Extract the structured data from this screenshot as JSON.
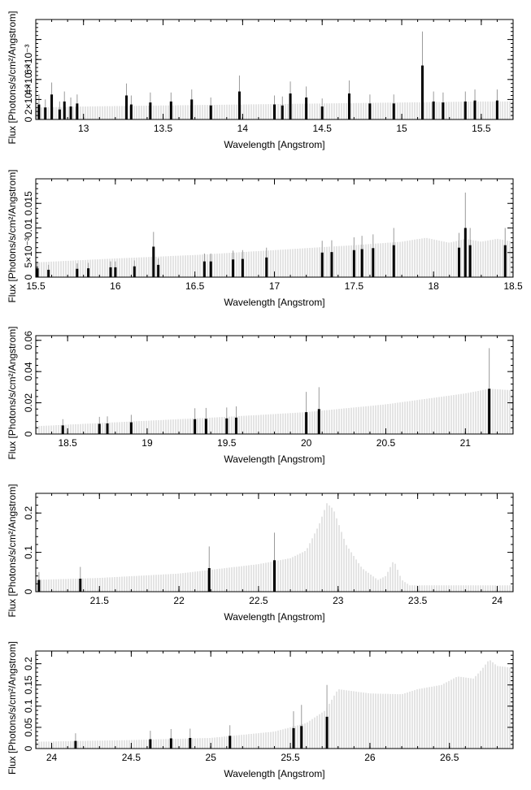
{
  "figure": {
    "xlabel": "Wavelength [Angstrom]",
    "ylabel": "Flux [Photons/s/cm²/Angstrom]"
  },
  "colors": {
    "model": "#c8c8c8",
    "data": "#000000",
    "errorbar": "#9a9a9a",
    "axis": "#000000"
  },
  "chart_data": [
    {
      "type": "bar",
      "panel": 1,
      "xlim": [
        12.7,
        15.7
      ],
      "ylim": [
        0,
        0.01
      ],
      "xticks": [
        13,
        13.5,
        14,
        14.5,
        15,
        15.5
      ],
      "xtick_labels": [
        "13",
        "13.5",
        "14",
        "14.5",
        "15",
        "15.5"
      ],
      "yticks": [
        0,
        0.002,
        0.004,
        0.006,
        0.008
      ],
      "ytick_labels": [
        "0",
        "2×10⁻³",
        "4×10⁻³",
        "6×10⁻³",
        ""
      ],
      "model_x": [
        12.7,
        13.0,
        13.5,
        14.0,
        14.5,
        15.0,
        15.5,
        15.7
      ],
      "model_y": [
        0.0012,
        0.0013,
        0.0014,
        0.0015,
        0.0016,
        0.0017,
        0.0018,
        0.0018
      ],
      "points": [
        {
          "x": 12.72,
          "y": 0.0015,
          "err": 0.001
        },
        {
          "x": 12.76,
          "y": 0.0012,
          "err": 0.0008
        },
        {
          "x": 12.8,
          "y": 0.0025,
          "err": 0.0012
        },
        {
          "x": 12.85,
          "y": 0.001,
          "err": 0.0008
        },
        {
          "x": 12.88,
          "y": 0.0018,
          "err": 0.001
        },
        {
          "x": 12.92,
          "y": 0.0013,
          "err": 0.0009
        },
        {
          "x": 12.96,
          "y": 0.0016,
          "err": 0.0009
        },
        {
          "x": 13.27,
          "y": 0.0024,
          "err": 0.0012
        },
        {
          "x": 13.3,
          "y": 0.0015,
          "err": 0.0009
        },
        {
          "x": 13.42,
          "y": 0.0017,
          "err": 0.001
        },
        {
          "x": 13.55,
          "y": 0.0018,
          "err": 0.0009
        },
        {
          "x": 13.68,
          "y": 0.002,
          "err": 0.001
        },
        {
          "x": 13.8,
          "y": 0.0014,
          "err": 0.0008
        },
        {
          "x": 13.98,
          "y": 0.0028,
          "err": 0.0016
        },
        {
          "x": 14.2,
          "y": 0.0015,
          "err": 0.0009
        },
        {
          "x": 14.25,
          "y": 0.0014,
          "err": 0.0009
        },
        {
          "x": 14.3,
          "y": 0.0026,
          "err": 0.0012
        },
        {
          "x": 14.4,
          "y": 0.0022,
          "err": 0.0011
        },
        {
          "x": 14.5,
          "y": 0.0013,
          "err": 0.0008
        },
        {
          "x": 14.67,
          "y": 0.0026,
          "err": 0.0013
        },
        {
          "x": 14.8,
          "y": 0.0016,
          "err": 0.0009
        },
        {
          "x": 14.95,
          "y": 0.0016,
          "err": 0.0009
        },
        {
          "x": 15.13,
          "y": 0.0054,
          "err": 0.0034
        },
        {
          "x": 15.2,
          "y": 0.0018,
          "err": 0.001
        },
        {
          "x": 15.26,
          "y": 0.0017,
          "err": 0.001
        },
        {
          "x": 15.4,
          "y": 0.0018,
          "err": 0.001
        },
        {
          "x": 15.46,
          "y": 0.0019,
          "err": 0.0011
        },
        {
          "x": 15.6,
          "y": 0.0019,
          "err": 0.0011
        }
      ]
    },
    {
      "type": "bar",
      "panel": 2,
      "xlim": [
        15.5,
        18.5
      ],
      "ylim": [
        0,
        0.02
      ],
      "xticks": [
        15.5,
        16,
        16.5,
        17,
        17.5,
        18,
        18.5
      ],
      "xtick_labels": [
        "15.5",
        "16",
        "16.5",
        "17",
        "17.5",
        "18",
        "18.5"
      ],
      "yticks": [
        0,
        0.005,
        0.01,
        0.015
      ],
      "ytick_labels": [
        "0",
        "5×10⁻³",
        "0.01",
        "0.015"
      ],
      "model_x": [
        15.5,
        16.0,
        16.5,
        17.0,
        17.5,
        17.8,
        17.95,
        18.1,
        18.2,
        18.3,
        18.4,
        18.5
      ],
      "model_y": [
        0.003,
        0.0038,
        0.0045,
        0.0055,
        0.0065,
        0.0072,
        0.008,
        0.007,
        0.0078,
        0.0072,
        0.0078,
        0.0072
      ],
      "points": [
        {
          "x": 15.51,
          "y": 0.0018,
          "err": 0.0012
        },
        {
          "x": 15.58,
          "y": 0.0015,
          "err": 0.001
        },
        {
          "x": 15.76,
          "y": 0.0017,
          "err": 0.0011
        },
        {
          "x": 15.83,
          "y": 0.0018,
          "err": 0.0011
        },
        {
          "x": 15.97,
          "y": 0.002,
          "err": 0.0012
        },
        {
          "x": 16.0,
          "y": 0.002,
          "err": 0.0012
        },
        {
          "x": 16.12,
          "y": 0.0022,
          "err": 0.0012
        },
        {
          "x": 16.24,
          "y": 0.0062,
          "err": 0.003
        },
        {
          "x": 16.27,
          "y": 0.0025,
          "err": 0.0013
        },
        {
          "x": 16.56,
          "y": 0.0032,
          "err": 0.0016
        },
        {
          "x": 16.6,
          "y": 0.0032,
          "err": 0.0016
        },
        {
          "x": 16.74,
          "y": 0.0036,
          "err": 0.0018
        },
        {
          "x": 16.8,
          "y": 0.0037,
          "err": 0.0018
        },
        {
          "x": 16.95,
          "y": 0.004,
          "err": 0.002
        },
        {
          "x": 17.3,
          "y": 0.005,
          "err": 0.0024
        },
        {
          "x": 17.36,
          "y": 0.0051,
          "err": 0.0024
        },
        {
          "x": 17.5,
          "y": 0.0055,
          "err": 0.0026
        },
        {
          "x": 17.55,
          "y": 0.0057,
          "err": 0.0027
        },
        {
          "x": 17.62,
          "y": 0.0059,
          "err": 0.0028
        },
        {
          "x": 17.75,
          "y": 0.0065,
          "err": 0.0035
        },
        {
          "x": 18.16,
          "y": 0.006,
          "err": 0.003
        },
        {
          "x": 18.2,
          "y": 0.01,
          "err": 0.0072
        },
        {
          "x": 18.23,
          "y": 0.0065,
          "err": 0.0035
        },
        {
          "x": 18.45,
          "y": 0.0065,
          "err": 0.0035
        }
      ]
    },
    {
      "type": "bar",
      "panel": 3,
      "xlim": [
        18.3,
        21.3
      ],
      "ylim": [
        0,
        0.063
      ],
      "xticks": [
        18.5,
        19,
        19.5,
        20,
        20.5,
        21
      ],
      "xtick_labels": [
        "18.5",
        "19",
        "19.5",
        "20",
        "20.5",
        "21"
      ],
      "yticks": [
        0,
        0.02,
        0.04,
        0.06
      ],
      "ytick_labels": [
        "0",
        "0.02",
        "0.04",
        "0.06"
      ],
      "model_x": [
        18.3,
        19.0,
        19.5,
        20.0,
        20.5,
        21.0,
        21.15,
        21.3
      ],
      "model_y": [
        0.005,
        0.0085,
        0.011,
        0.014,
        0.019,
        0.026,
        0.029,
        0.028
      ],
      "points": [
        {
          "x": 18.47,
          "y": 0.0055,
          "err": 0.004
        },
        {
          "x": 18.7,
          "y": 0.0065,
          "err": 0.0045
        },
        {
          "x": 18.75,
          "y": 0.0068,
          "err": 0.0045
        },
        {
          "x": 18.9,
          "y": 0.0075,
          "err": 0.0048
        },
        {
          "x": 19.3,
          "y": 0.0095,
          "err": 0.007
        },
        {
          "x": 19.37,
          "y": 0.0097,
          "err": 0.007
        },
        {
          "x": 19.5,
          "y": 0.01,
          "err": 0.007
        },
        {
          "x": 19.56,
          "y": 0.0105,
          "err": 0.0072
        },
        {
          "x": 20.0,
          "y": 0.014,
          "err": 0.013
        },
        {
          "x": 20.08,
          "y": 0.016,
          "err": 0.014
        },
        {
          "x": 21.15,
          "y": 0.029,
          "err": 0.026
        }
      ]
    },
    {
      "type": "bar",
      "panel": 4,
      "xlim": [
        21.1,
        24.1
      ],
      "ylim": [
        0,
        0.25
      ],
      "xticks": [
        21.5,
        22,
        22.5,
        23,
        23.5,
        24
      ],
      "xtick_labels": [
        "21.5",
        "22",
        "22.5",
        "23",
        "23.5",
        "24"
      ],
      "yticks": [
        0,
        0.1,
        0.2
      ],
      "ytick_labels": [
        "0",
        "0.1",
        "0.2"
      ],
      "model_x": [
        21.1,
        21.5,
        22.0,
        22.5,
        22.7,
        22.8,
        22.88,
        22.93,
        22.97,
        23.05,
        23.15,
        23.25,
        23.3,
        23.35,
        23.4,
        23.45,
        24.1
      ],
      "model_y": [
        0.03,
        0.035,
        0.046,
        0.07,
        0.085,
        0.105,
        0.17,
        0.225,
        0.21,
        0.12,
        0.06,
        0.03,
        0.04,
        0.08,
        0.03,
        0.016,
        0.016
      ],
      "points": [
        {
          "x": 21.12,
          "y": 0.03,
          "err": 0.02
        },
        {
          "x": 21.38,
          "y": 0.033,
          "err": 0.03
        },
        {
          "x": 22.19,
          "y": 0.06,
          "err": 0.055
        },
        {
          "x": 22.6,
          "y": 0.08,
          "err": 0.07
        }
      ]
    },
    {
      "type": "bar",
      "panel": 5,
      "xlim": [
        23.9,
        26.9
      ],
      "ylim": [
        0,
        0.23
      ],
      "xticks": [
        24,
        24.5,
        25,
        25.5,
        26,
        26.5
      ],
      "xtick_labels": [
        "24",
        "24.5",
        "25",
        "25.5",
        "26",
        "26.5"
      ],
      "yticks": [
        0,
        0.05,
        0.1,
        0.15,
        0.2
      ],
      "ytick_labels": [
        "0",
        "0.05",
        "0.1",
        "0.15",
        "0.2"
      ],
      "model_x": [
        23.9,
        24.5,
        25.0,
        25.4,
        25.6,
        25.72,
        25.8,
        26.0,
        26.2,
        26.3,
        26.45,
        26.55,
        26.65,
        26.7,
        26.75,
        26.8,
        26.9
      ],
      "model_y": [
        0.016,
        0.02,
        0.025,
        0.04,
        0.06,
        0.09,
        0.14,
        0.13,
        0.128,
        0.14,
        0.15,
        0.17,
        0.165,
        0.185,
        0.21,
        0.195,
        0.19
      ],
      "points": [
        {
          "x": 24.15,
          "y": 0.018,
          "err": 0.018
        },
        {
          "x": 24.62,
          "y": 0.022,
          "err": 0.02
        },
        {
          "x": 24.75,
          "y": 0.024,
          "err": 0.022
        },
        {
          "x": 24.87,
          "y": 0.025,
          "err": 0.022
        },
        {
          "x": 25.12,
          "y": 0.03,
          "err": 0.025
        },
        {
          "x": 25.52,
          "y": 0.048,
          "err": 0.04
        },
        {
          "x": 25.57,
          "y": 0.053,
          "err": 0.05
        },
        {
          "x": 25.73,
          "y": 0.075,
          "err": 0.075
        }
      ]
    }
  ]
}
